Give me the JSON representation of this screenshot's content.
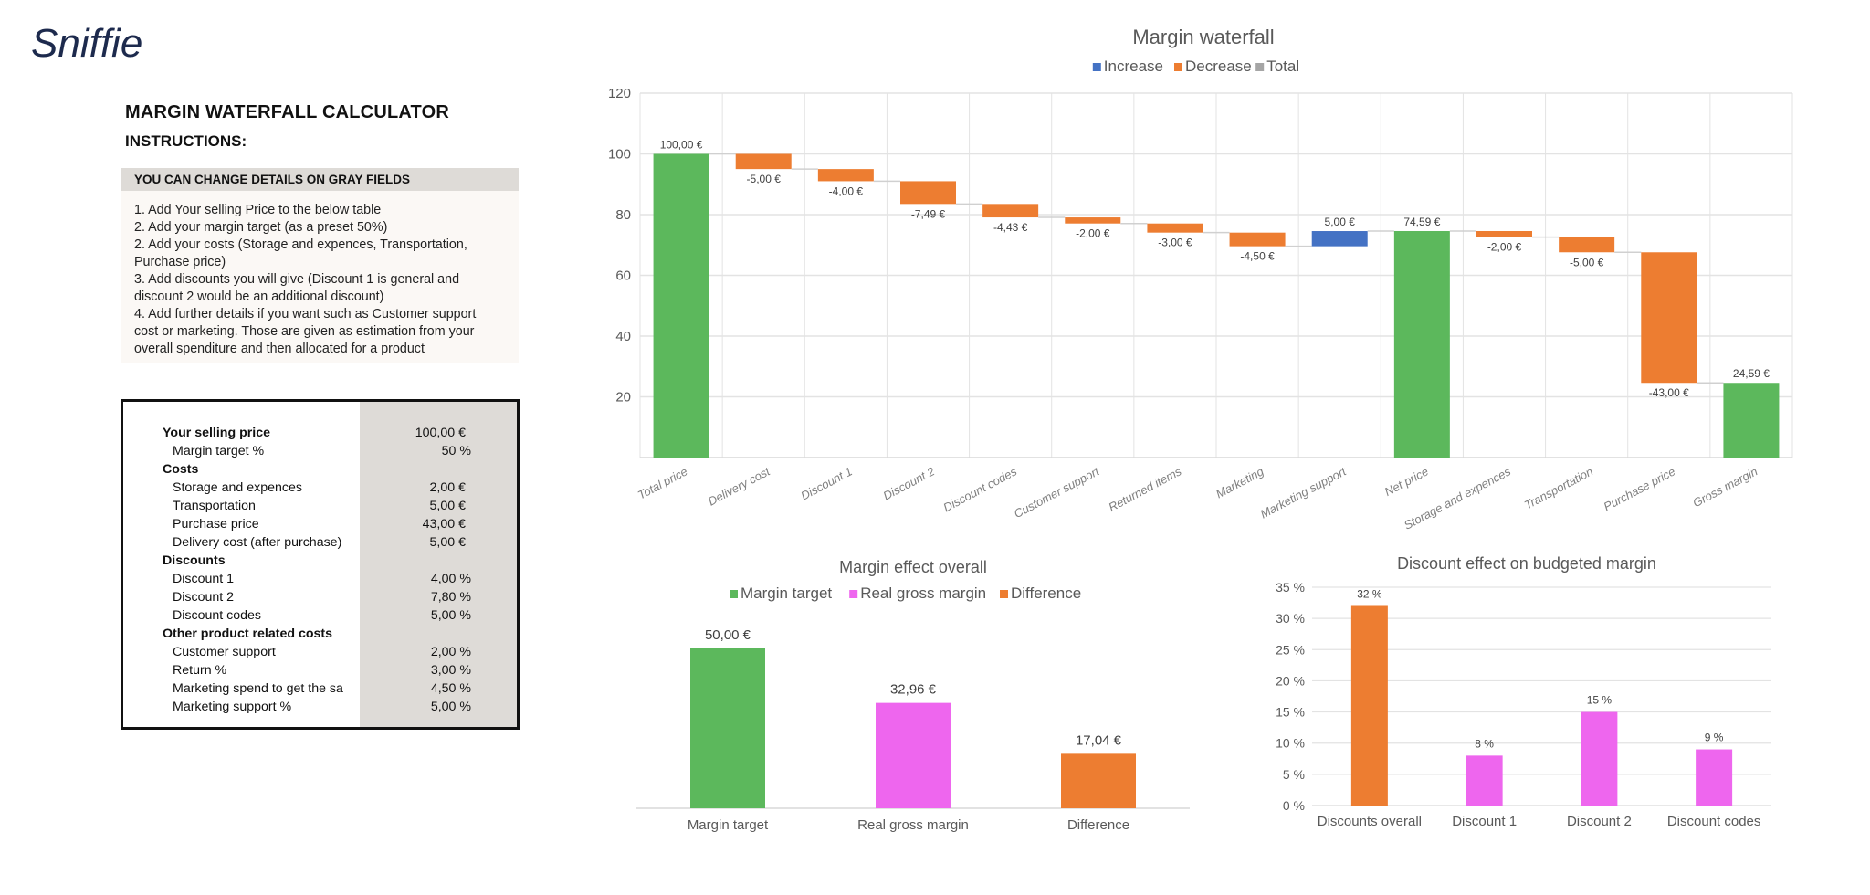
{
  "logo": {
    "text": "Sniffie"
  },
  "header": {
    "title": "MARGIN WATERFALL CALCULATOR",
    "instructions_label": "INSTRUCTIONS:",
    "gray_note": "YOU CAN CHANGE DETAILS ON GRAY FIELDS",
    "instructions": [
      "1. Add Your selling Price to the below table",
      "2. Add your margin target (as a preset 50%)",
      "2. Add your costs (Storage and expences, Transportation,",
      "Purchase price)",
      "3. Add discounts you will give (Discount 1 is general and",
      "discount 2 would be an additional discount)",
      "4. Add further details if you want such as Customer support",
      "cost or marketing. Those are given as estimation from your",
      "overall spenditure and then allocated for a product"
    ]
  },
  "calculator": {
    "rows": [
      {
        "label": "Your selling price",
        "value": "100,00 €",
        "type": "head"
      },
      {
        "label": "Margin target %",
        "value": "50 %",
        "type": "sub"
      },
      {
        "label": "Costs",
        "value": "",
        "type": "head"
      },
      {
        "label": "Storage and expences",
        "value": "2,00 €",
        "type": "sub"
      },
      {
        "label": "Transportation",
        "value": "5,00 €",
        "type": "sub"
      },
      {
        "label": "Purchase price",
        "value": "43,00 €",
        "type": "sub"
      },
      {
        "label": "Delivery cost (after purchase)",
        "value": "5,00 €",
        "type": "sub"
      },
      {
        "label": "Discounts",
        "value": "",
        "type": "head"
      },
      {
        "label": "Discount 1",
        "value": "4,00 %",
        "type": "sub"
      },
      {
        "label": "Discount 2",
        "value": "7,80 %",
        "type": "sub"
      },
      {
        "label": "Discount codes",
        "value": "5,00 %",
        "type": "sub"
      },
      {
        "label": "Other product related costs",
        "value": "",
        "type": "head"
      },
      {
        "label": "Customer support",
        "value": "2,00 %",
        "type": "sub"
      },
      {
        "label": "Return %",
        "value": "3,00 %",
        "type": "sub"
      },
      {
        "label": "Marketing spend to get the sa",
        "value": "4,50 %",
        "type": "sub"
      },
      {
        "label": "Marketing support %",
        "value": "5,00 %",
        "type": "sub"
      }
    ]
  },
  "colors": {
    "increase": "#4472c4",
    "decrease": "#ed7d31",
    "total_legend": "#a5a5a5",
    "total_bar": "#5cb85c",
    "pink": "#ee66ee",
    "grid": "#e3e3e3",
    "text": "#555555"
  },
  "chart_data": [
    {
      "type": "waterfall",
      "title": "Margin waterfall",
      "legend": [
        "Increase",
        "Decrease",
        "Total"
      ],
      "legend_placement": "top-center",
      "ylim": [
        0,
        120
      ],
      "yticks": [
        20,
        40,
        60,
        80,
        100,
        120
      ],
      "grid": true,
      "categories": [
        "Total price",
        "Delivery cost",
        "Discount 1",
        "Discount 2",
        "Discount codes",
        "Customer support",
        "Returned items",
        "Marketing",
        "Marketing support",
        "Net price",
        "Storage and expences",
        "Transportation",
        "Purchase price",
        "Gross margin"
      ],
      "values": [
        100,
        -5,
        -4,
        -7.49,
        -4.43,
        -2,
        -3,
        -4.5,
        5,
        74.59,
        -2,
        -5,
        -43,
        24.59
      ],
      "kinds": [
        "total",
        "decrease",
        "decrease",
        "decrease",
        "decrease",
        "decrease",
        "decrease",
        "decrease",
        "increase",
        "total",
        "decrease",
        "decrease",
        "decrease",
        "total"
      ],
      "labels": [
        "100,00 €",
        "-5,00 €",
        "-4,00 €",
        "-7,49 €",
        "-4,43 €",
        "-2,00 €",
        "-3,00 €",
        "-4,50 €",
        "5,00 €",
        "74,59 €",
        "-2,00 €",
        "-5,00 €",
        "-43,00 €",
        "24,59 €"
      ]
    },
    {
      "type": "bar",
      "title": "Margin effect overall",
      "legend": [
        "Margin target",
        "Real gross margin",
        "Difference"
      ],
      "legend_placement": "top-center",
      "categories": [
        "Margin target",
        "Real gross margin",
        "Difference"
      ],
      "values": [
        50.0,
        32.96,
        17.04
      ],
      "labels": [
        "50,00 €",
        "32,96 €",
        "17,04 €"
      ],
      "ylim": [
        0,
        60
      ]
    },
    {
      "type": "bar",
      "title": "Discount effect on budgeted margin",
      "categories": [
        "Discounts overall",
        "Discount 1",
        "Discount 2",
        "Discount codes"
      ],
      "values": [
        32,
        8,
        15,
        9
      ],
      "labels": [
        "32 %",
        "8 %",
        "15 %",
        "9 %"
      ],
      "ylim": [
        0,
        35
      ],
      "yticks": [
        "0 %",
        "5 %",
        "10 %",
        "15 %",
        "20 %",
        "25 %",
        "30 %",
        "35 %"
      ],
      "grid": true
    }
  ]
}
